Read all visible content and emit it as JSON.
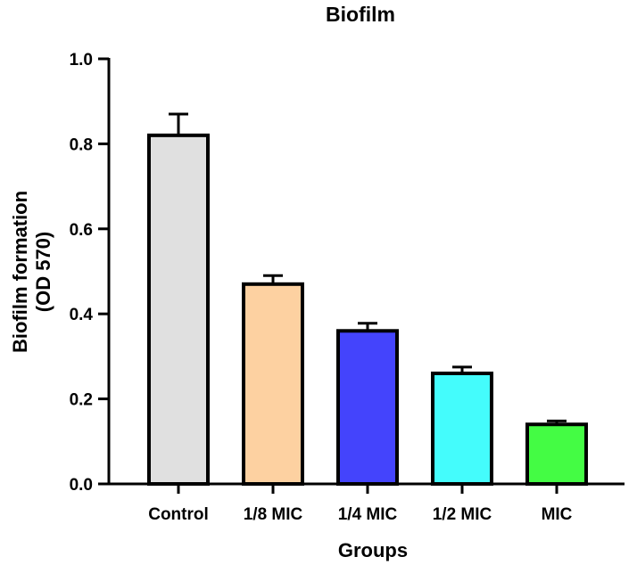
{
  "chart_data": {
    "type": "bar",
    "title": "Biofilm",
    "xlabel": "Groups",
    "ylabel_lines": [
      "Biofilm formation",
      "(OD 570)"
    ],
    "categories": [
      "Control",
      "1/8 MIC",
      "1/4 MIC",
      "1/2 MIC",
      "MIC"
    ],
    "values": [
      0.82,
      0.47,
      0.36,
      0.26,
      0.14
    ],
    "errors": [
      0.05,
      0.02,
      0.018,
      0.015,
      0.008
    ],
    "colors": [
      "#e0e0e0",
      "#fdd1a1",
      "#4444fc",
      "#44fcfc",
      "#44fc44"
    ],
    "ylim": [
      0.0,
      1.0
    ],
    "yticks": [
      0.0,
      0.2,
      0.4,
      0.6,
      0.8,
      1.0
    ],
    "ytick_labels": [
      "0.0",
      "0.2",
      "0.4",
      "0.6",
      "0.8",
      "1.0"
    ],
    "grid": false
  }
}
